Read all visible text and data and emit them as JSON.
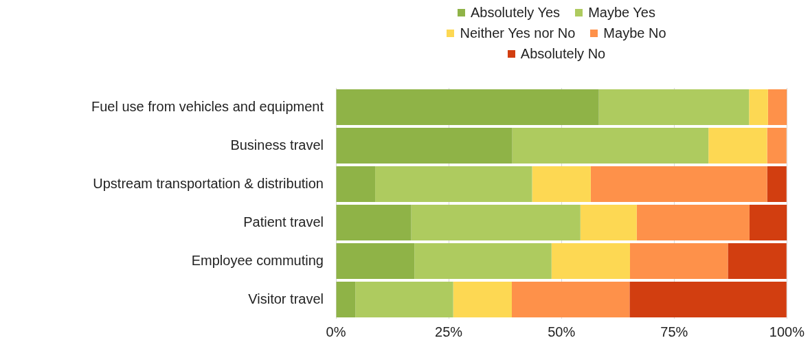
{
  "chart_data": {
    "type": "bar",
    "orientation": "horizontal",
    "stacked": true,
    "categories": [
      "Fuel use from vehicles and equipment",
      "Business travel",
      "Upstream transportation & distribution",
      "Patient travel",
      "Employee commuting",
      "Visitor travel"
    ],
    "series": [
      {
        "name": "Absolutely Yes",
        "color": "#8fb347",
        "values": [
          58.3,
          39.1,
          8.7,
          16.7,
          17.4,
          4.3
        ]
      },
      {
        "name": "Maybe Yes",
        "color": "#aecb5f",
        "values": [
          33.3,
          43.5,
          34.8,
          37.5,
          30.4,
          21.7
        ]
      },
      {
        "name": "Neither Yes nor No",
        "color": "#fdd853",
        "values": [
          4.2,
          13.0,
          13.0,
          12.5,
          17.4,
          13.0
        ]
      },
      {
        "name": "Maybe No",
        "color": "#fe914a",
        "values": [
          4.2,
          4.3,
          39.1,
          25.0,
          21.7,
          26.1
        ]
      },
      {
        "name": "Absolutely No",
        "color": "#d23e10",
        "values": [
          0,
          0,
          4.3,
          8.3,
          13.0,
          34.8
        ]
      }
    ],
    "xlim": [
      0,
      100
    ],
    "xticks": [
      {
        "value": 0,
        "label": "0%"
      },
      {
        "value": 25,
        "label": "25%"
      },
      {
        "value": 50,
        "label": "50%"
      },
      {
        "value": 75,
        "label": "75%"
      },
      {
        "value": 100,
        "label": "100%"
      }
    ],
    "grid": "x",
    "legend": "top"
  }
}
